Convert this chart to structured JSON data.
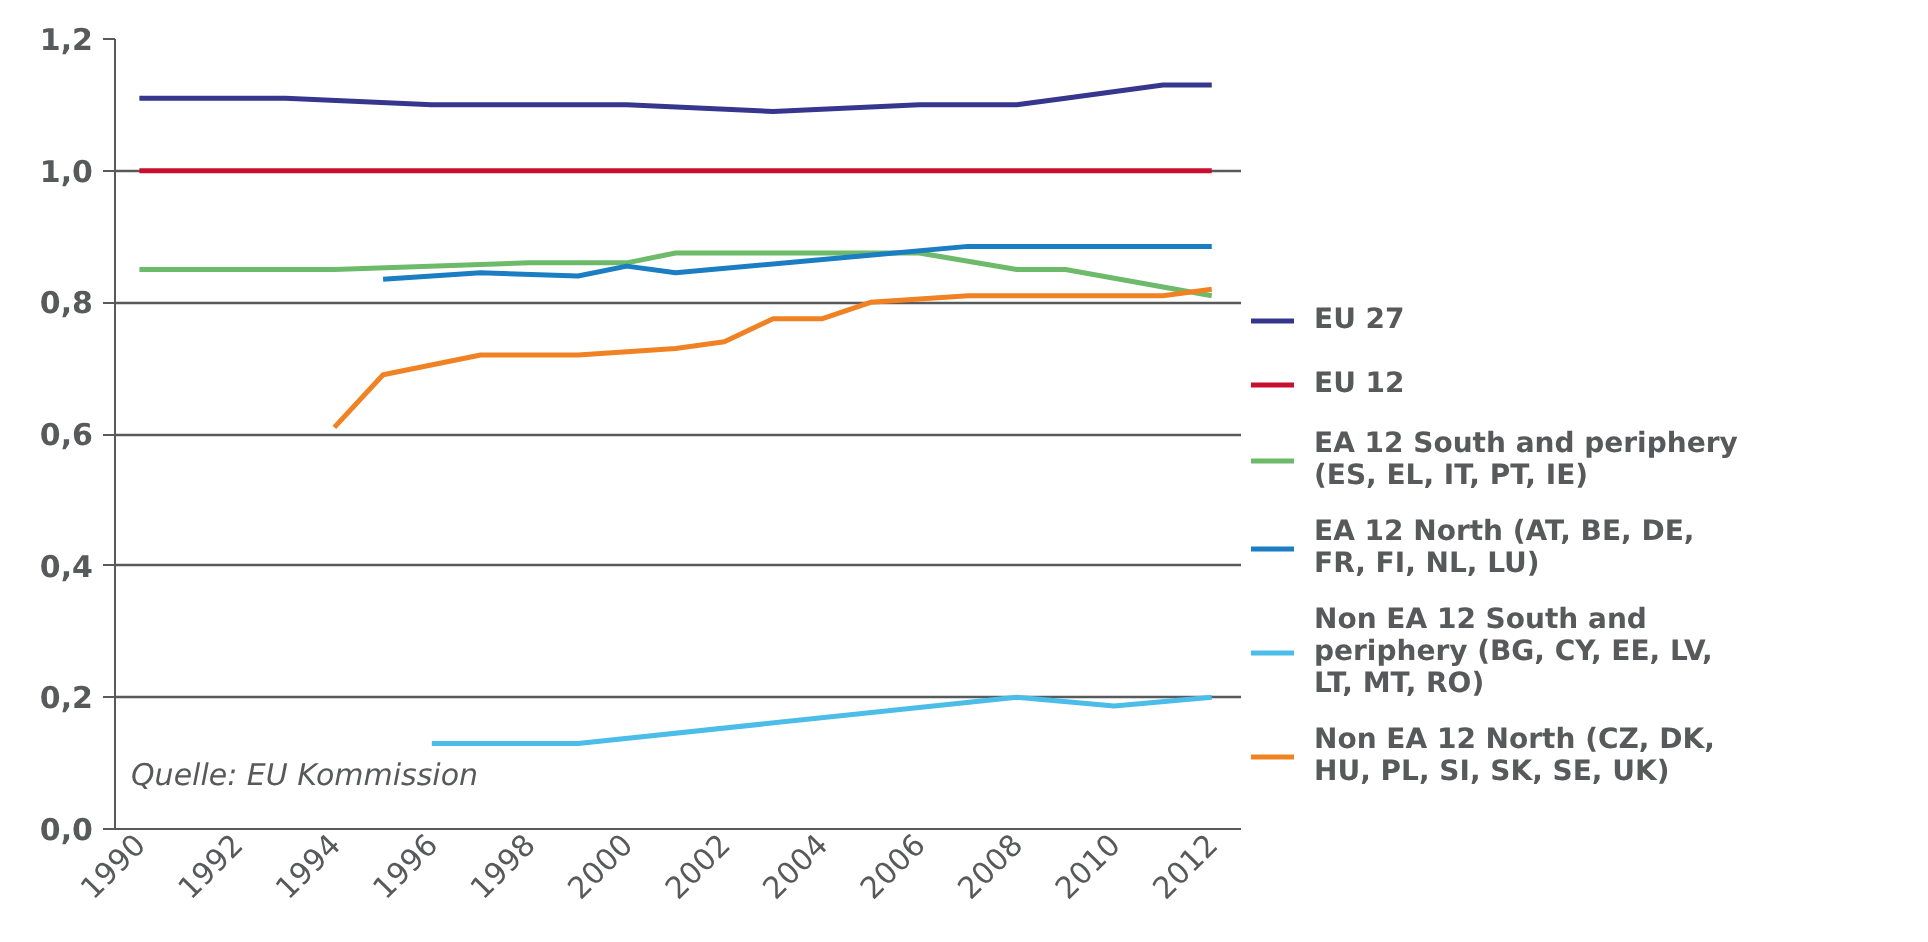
{
  "chart_data": {
    "type": "line",
    "xlim": [
      1989.5,
      2012.6
    ],
    "xticks": [
      1990,
      1992,
      1994,
      1996,
      1998,
      2000,
      2002,
      2004,
      2006,
      2008,
      2010,
      2012
    ],
    "ylim": [
      0,
      1.2
    ],
    "yticks": [
      {
        "value": 0,
        "label": "0,0"
      },
      {
        "value": 0.2,
        "label": "0,2"
      },
      {
        "value": 0.4,
        "label": "0,4"
      },
      {
        "value": 0.6,
        "label": "0,6"
      },
      {
        "value": 0.8,
        "label": "0,8"
      },
      {
        "value": 1.0,
        "label": "1,0"
      },
      {
        "value": 1.2,
        "label": "1,2"
      }
    ],
    "grid": "y",
    "legend": "right",
    "annotations": [
      "Quelle: EU Kommission"
    ],
    "series": [
      {
        "name": "EU 27",
        "color": "#36368e",
        "x": [
          1990,
          1993,
          1996,
          2000,
          2003,
          2006,
          2008,
          2009,
          2011,
          2012
        ],
        "values": [
          1.11,
          1.11,
          1.1,
          1.1,
          1.09,
          1.1,
          1.1,
          1.11,
          1.13,
          1.13
        ]
      },
      {
        "name": "EU 12",
        "color": "#c8102e",
        "x": [
          1990,
          2012
        ],
        "values": [
          1.0,
          1.0
        ]
      },
      {
        "name": "EA 12 South and periphery (ES, EL, IT, PT, IE)",
        "color": "#6dbb6a",
        "x": [
          1990,
          1994,
          1998,
          2000,
          2001,
          2006,
          2008,
          2009,
          2012
        ],
        "values": [
          0.85,
          0.85,
          0.86,
          0.86,
          0.875,
          0.875,
          0.85,
          0.85,
          0.81
        ]
      },
      {
        "name": "EA 12 North (AT, BE, DE, FR, FI, NL, LU)",
        "color": "#1b7dc2",
        "x": [
          1995,
          1997,
          1999,
          2000,
          2001,
          2007,
          2012
        ],
        "values": [
          0.835,
          0.845,
          0.84,
          0.855,
          0.845,
          0.885,
          0.885
        ]
      },
      {
        "name": "Non EA 12 South and periphery (BG, CY, EE, LV, LT, MT, RO)",
        "color": "#4bbde8",
        "x": [
          1996,
          1999,
          2008,
          2010,
          2012
        ],
        "values": [
          0.13,
          0.13,
          0.2,
          0.187,
          0.2
        ]
      },
      {
        "name": "Non EA 12 North (CZ, DK, HU, PL, SI, SK, SE, UK)",
        "color": "#f08223",
        "x": [
          1994,
          1995,
          1997,
          1999,
          2001,
          2002,
          2003,
          2004,
          2005,
          2007,
          2011,
          2012
        ],
        "values": [
          0.61,
          0.69,
          0.72,
          0.72,
          0.73,
          0.74,
          0.775,
          0.775,
          0.8,
          0.81,
          0.81,
          0.82
        ]
      }
    ]
  }
}
